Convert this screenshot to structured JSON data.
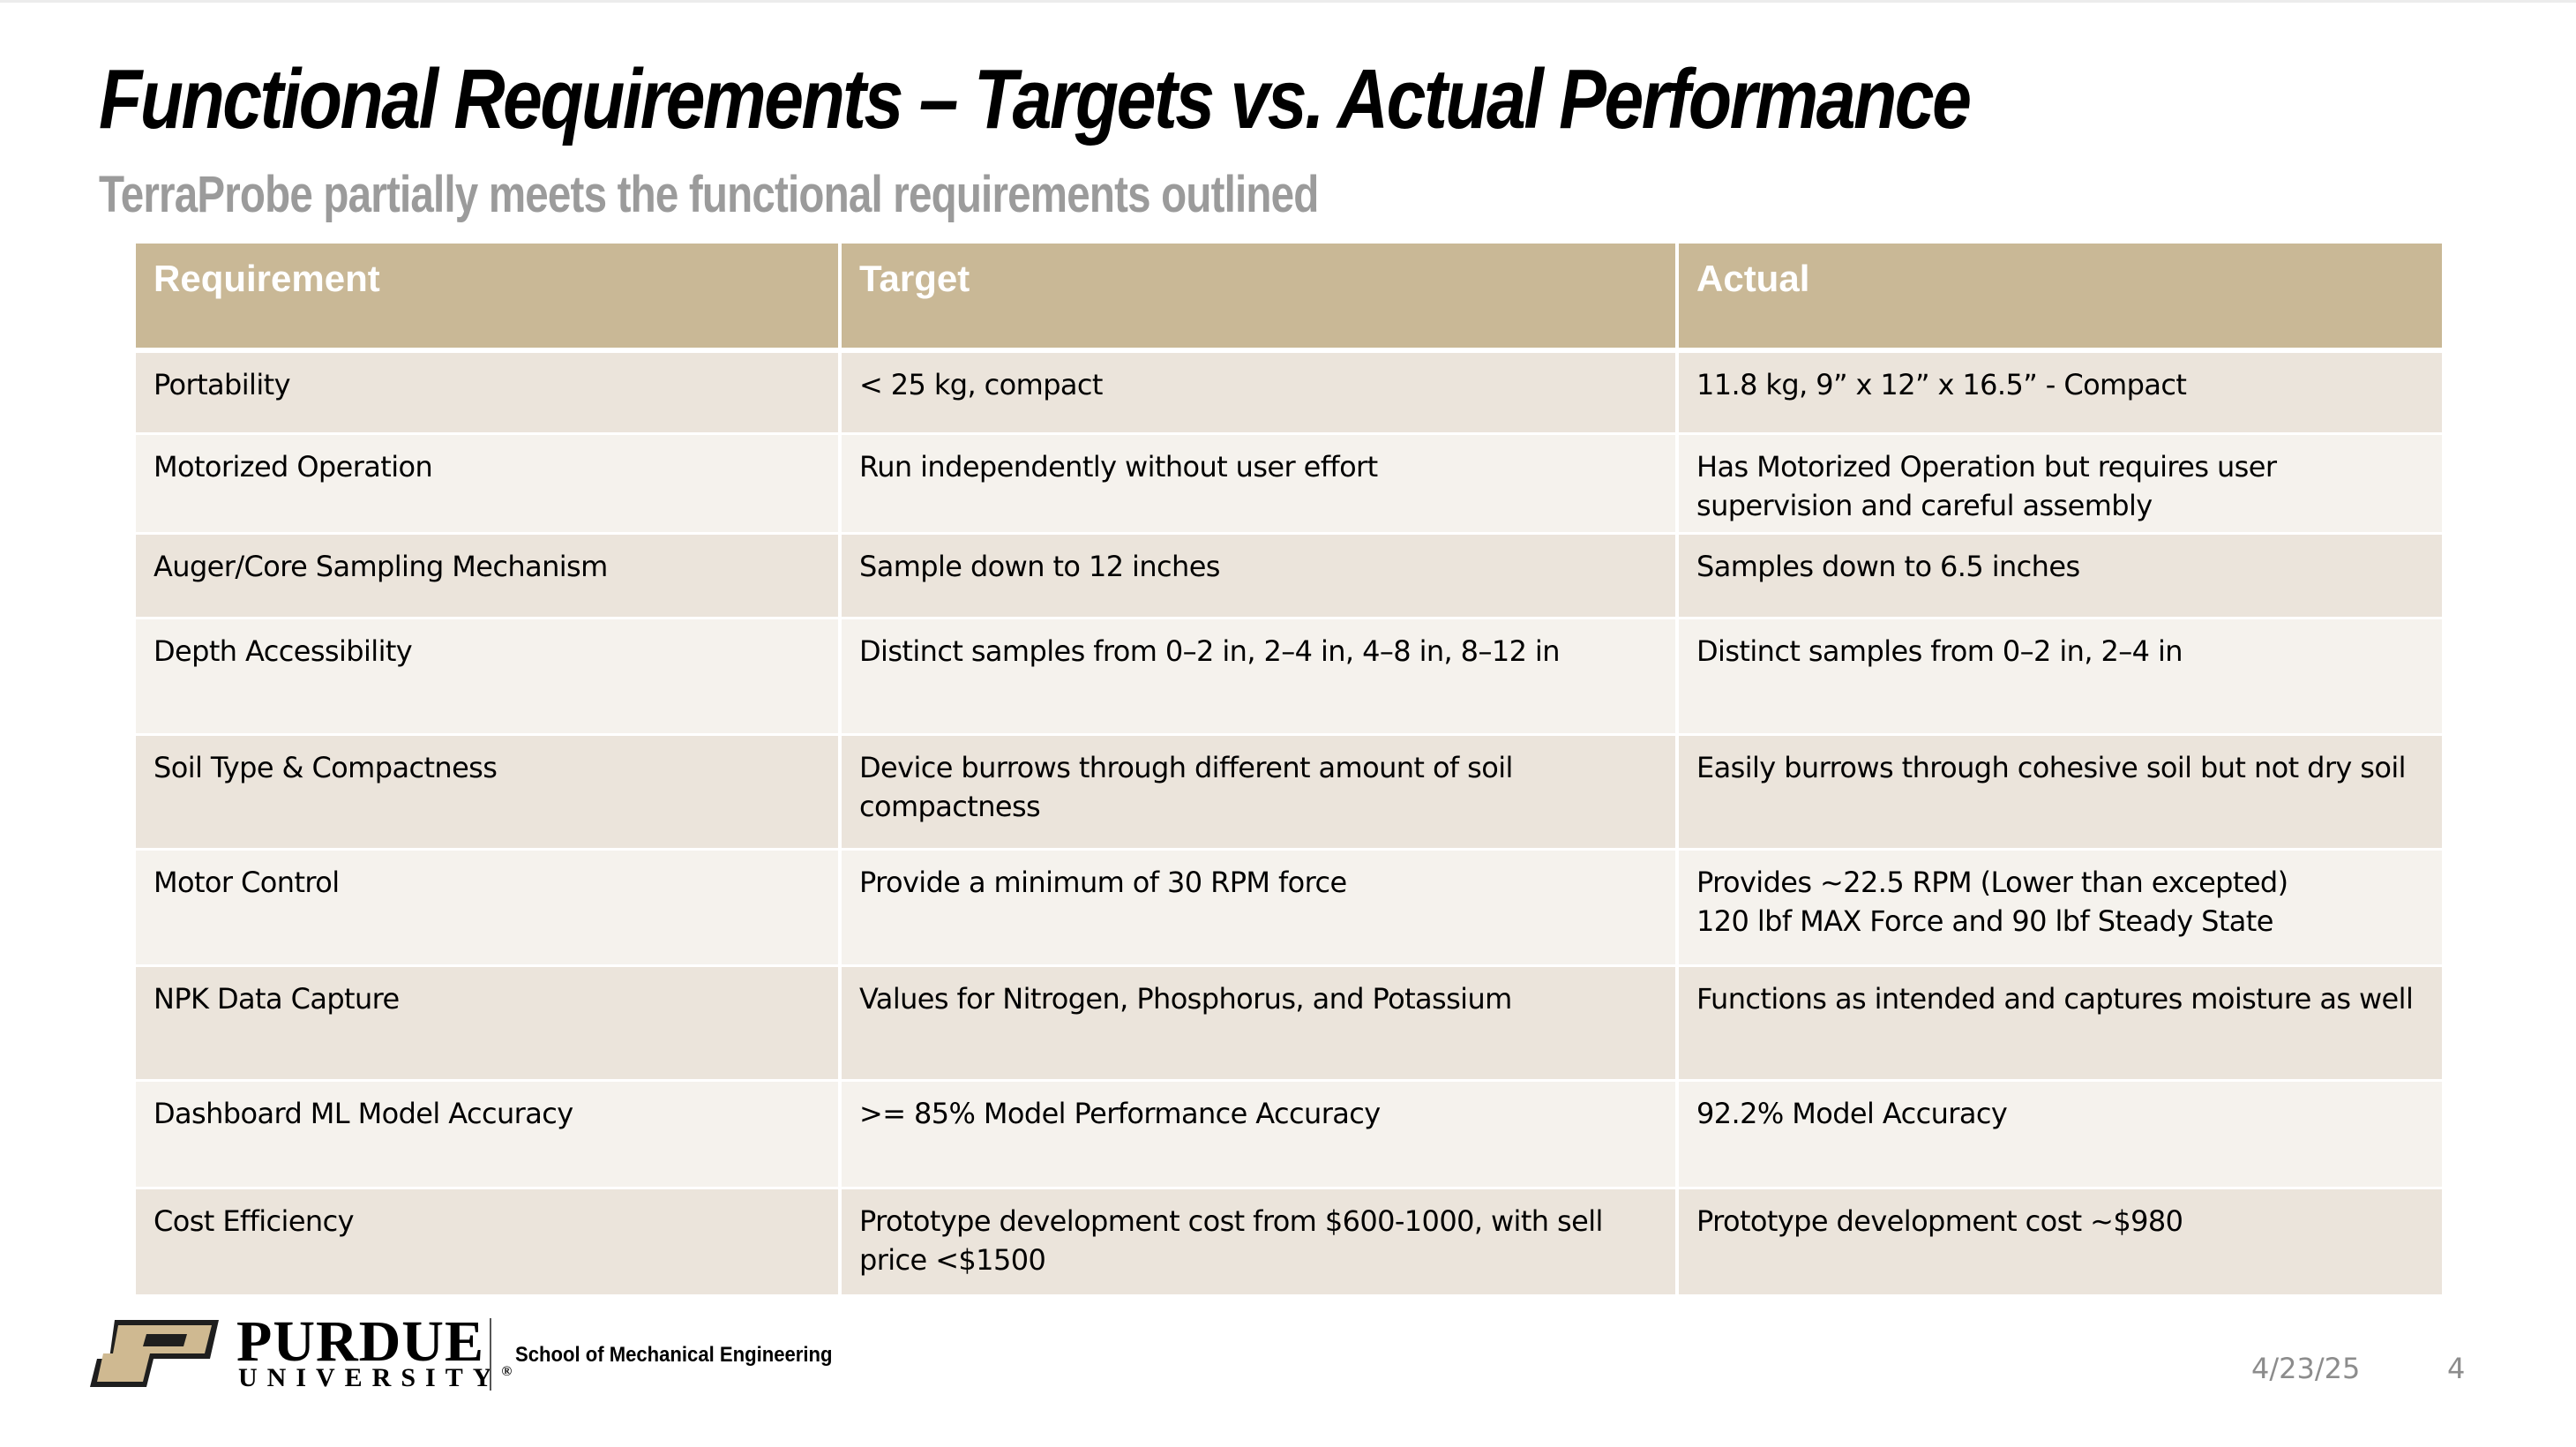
{
  "slide": {
    "title": "Functional Requirements – Targets vs. Actual Performance",
    "subtitle": "TerraProbe partially meets the functional requirements outlined"
  },
  "table": {
    "headers": [
      "Requirement",
      "Target",
      "Actual"
    ],
    "rows": [
      {
        "requirement": "Portability",
        "target": "< 25 kg, compact",
        "actual": "11.8 kg, 9” x 12” x 16.5” - Compact"
      },
      {
        "requirement": "Motorized Operation",
        "target": "Run independently without user effort",
        "actual": "Has Motorized Operation but requires user supervision and careful assembly"
      },
      {
        "requirement": "Auger/Core Sampling Mechanism",
        "target": "Sample down to 12 inches",
        "actual": "Samples down to 6.5 inches"
      },
      {
        "requirement": "Depth Accessibility",
        "target": "Distinct samples from 0–2 in, 2–4 in, 4–8 in, 8–12 in",
        "actual": "Distinct samples from 0–2 in, 2–4 in"
      },
      {
        "requirement": "Soil Type & Compactness",
        "target": "Device burrows through different amount of soil compactness",
        "actual": "Easily burrows through cohesive soil but not dry soil"
      },
      {
        "requirement": "Motor Control",
        "target": "Provide a minimum of 30 RPM force",
        "actual": "Provides ~22.5 RPM (Lower than excepted)\n120 lbf MAX Force and 90 lbf Steady State"
      },
      {
        "requirement": "NPK Data Capture",
        "target": "Values for Nitrogen, Phosphorus, and Potassium",
        "actual": "Functions as intended and captures moisture as well"
      },
      {
        "requirement": "Dashboard ML Model Accuracy",
        "target": ">= 85% Model Performance Accuracy",
        "actual": "92.2% Model Accuracy"
      },
      {
        "requirement": "Cost Efficiency",
        "target": "Prototype development cost from $600-1000, with sell price <$1500",
        "actual": "Prototype development cost ~$980"
      }
    ]
  },
  "footer": {
    "brand": "PURDUE",
    "brand_sub": "UNIVERSITY",
    "registered": "®",
    "school": "School of Mechanical Engineering",
    "date": "4/23/25",
    "page_number": "4",
    "logo_icon": "purdue-p-logo-icon"
  },
  "colors": {
    "header_bg": "#c9b896",
    "row_odd": "#ebe4db",
    "row_even": "#f5f2ed",
    "subtitle": "#9b9b9b",
    "logo_gold": "#cfb991"
  }
}
